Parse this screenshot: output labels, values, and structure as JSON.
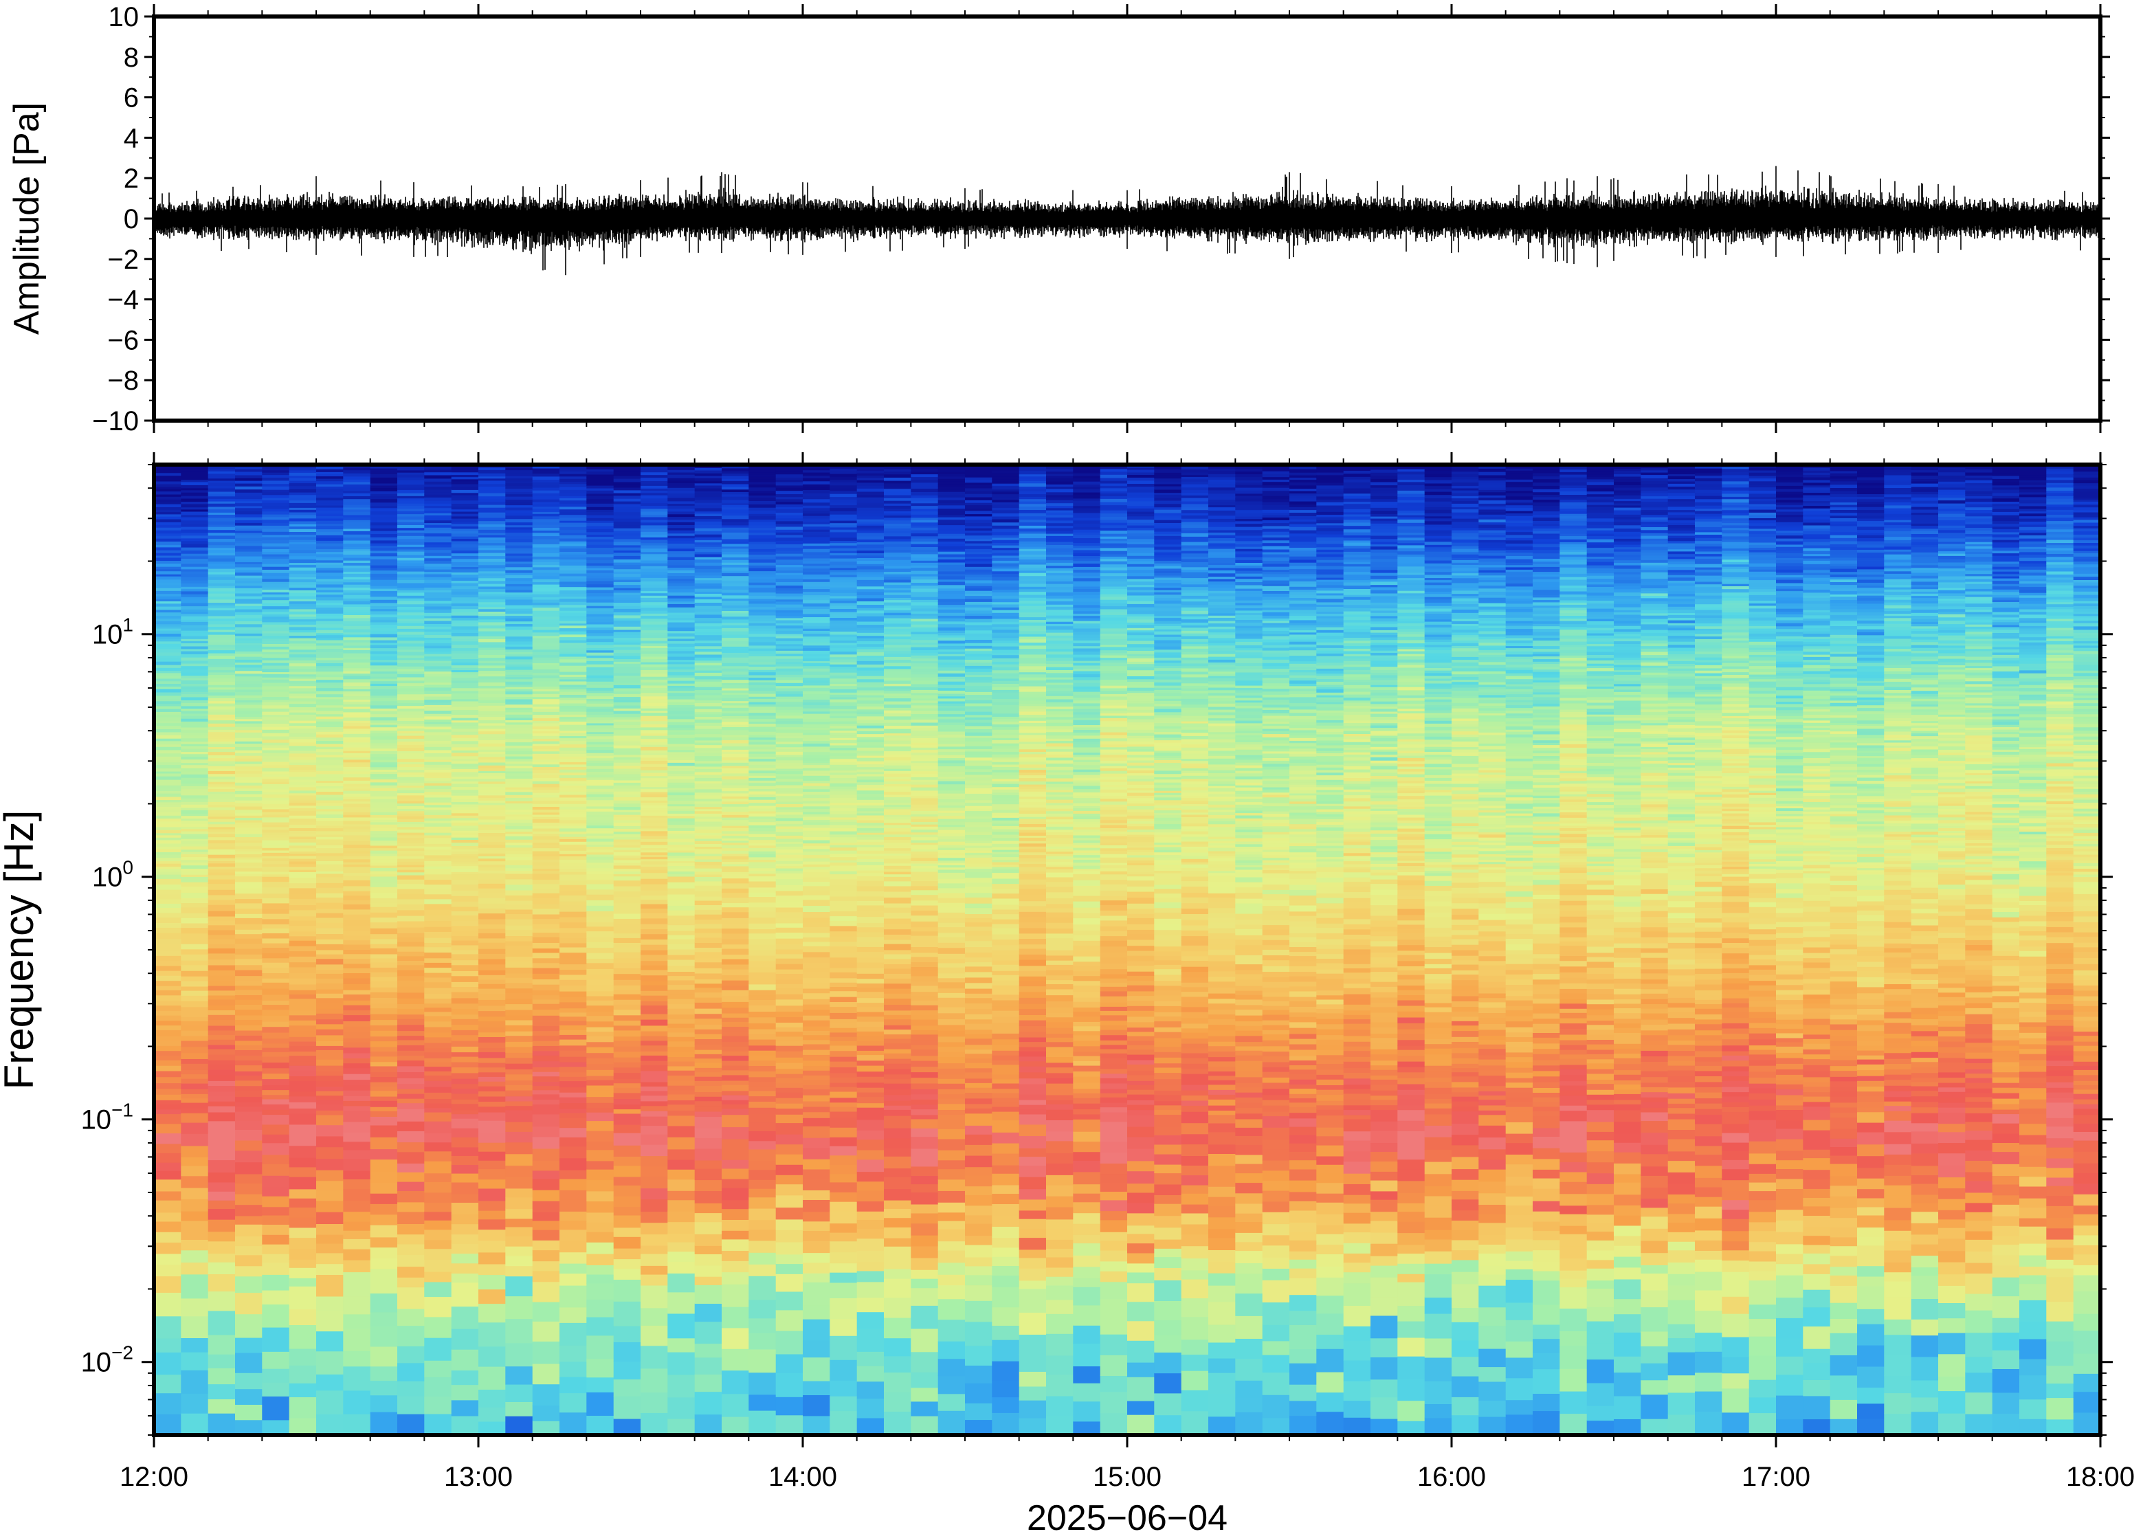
{
  "chart_data": [
    {
      "type": "line",
      "panel": "waveform",
      "ylabel": "Amplitude [Pa]",
      "ylim": [
        -10,
        10
      ],
      "yticks": [
        10,
        8,
        6,
        4,
        2,
        0,
        -2,
        -4,
        -6,
        -8,
        -10
      ],
      "ytick_labels": [
        "10",
        "8",
        "6",
        "4",
        "2",
        "0",
        "−2",
        "−4",
        "−6",
        "−8",
        "−10"
      ],
      "xlim": [
        "12:00",
        "18:00"
      ],
      "series": [
        {
          "color": "#000000",
          "envelope_time_h": [
            12.0,
            12.5,
            12.8,
            13.27,
            13.5,
            13.75,
            14.0,
            14.5,
            15.0,
            15.5,
            16.0,
            16.45,
            16.5,
            17.0,
            17.5,
            18.0
          ],
          "envelope_max": [
            1.3,
            2.1,
            1.8,
            1.7,
            1.9,
            2.3,
            1.8,
            1.5,
            1.4,
            2.3,
            1.6,
            2.1,
            2.0,
            2.6,
            1.7,
            1.4
          ],
          "envelope_min": [
            -1.5,
            -1.8,
            -1.9,
            -2.8,
            -1.9,
            -1.7,
            -1.8,
            -1.5,
            -1.5,
            -2.0,
            -1.7,
            -2.4,
            -2.1,
            -1.9,
            -1.7,
            -1.6
          ]
        }
      ]
    },
    {
      "type": "heatmap",
      "panel": "spectrogram",
      "ylabel": "Frequency [Hz]",
      "yscale": "log",
      "ylim": [
        0.005,
        50
      ],
      "yticks": [
        0.01,
        0.1,
        1,
        10
      ],
      "ytick_labels": [
        {
          "base": "10",
          "exp": "−2"
        },
        {
          "base": "10",
          "exp": "−1"
        },
        {
          "base": "10",
          "exp": "0"
        },
        {
          "base": "10",
          "exp": "1"
        }
      ],
      "xlabel": "2025−06−04",
      "xlim": [
        "12:00",
        "18:00"
      ],
      "xticks": [
        "12:00",
        "13:00",
        "14:00",
        "15:00",
        "16:00",
        "17:00",
        "18:00"
      ],
      "colormap": "jet (blue = low power, red = high power)",
      "colors": {
        "low": "#0b0b8a",
        "mid_low": "#2fb8ff",
        "mid": "#e6f28a",
        "mid_high": "#f7a84a",
        "high": "#ef5555"
      },
      "mean_profile": [
        {
          "freq_hz": 50,
          "level": 0.02
        },
        {
          "freq_hz": 30,
          "level": 0.12
        },
        {
          "freq_hz": 15,
          "level": 0.28
        },
        {
          "freq_hz": 8,
          "level": 0.4
        },
        {
          "freq_hz": 4,
          "level": 0.52
        },
        {
          "freq_hz": 1,
          "level": 0.6
        },
        {
          "freq_hz": 0.4,
          "level": 0.72
        },
        {
          "freq_hz": 0.15,
          "level": 0.88
        },
        {
          "freq_hz": 0.08,
          "level": 0.94
        },
        {
          "freq_hz": 0.04,
          "level": 0.8
        },
        {
          "freq_hz": 0.02,
          "level": 0.55
        },
        {
          "freq_hz": 0.01,
          "level": 0.4
        },
        {
          "freq_hz": 0.005,
          "level": 0.33
        }
      ]
    }
  ]
}
